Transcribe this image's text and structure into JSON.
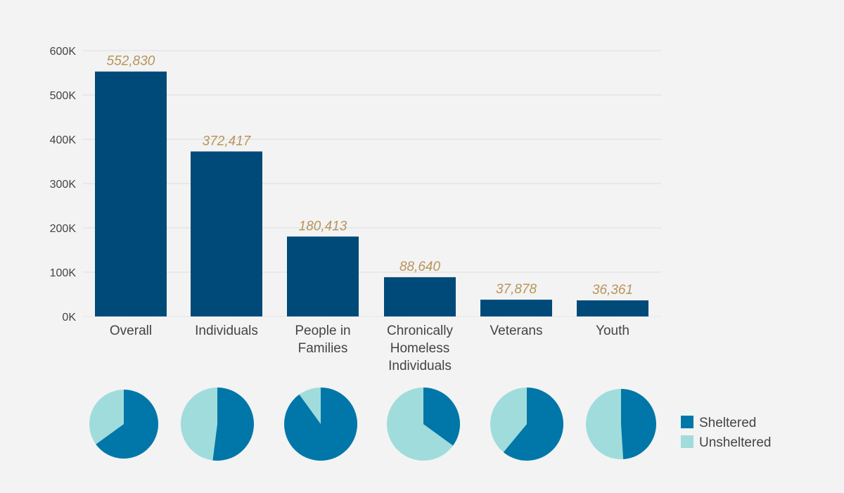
{
  "colors": {
    "bar": "#004a7a",
    "value_label": "#b8945a",
    "sheltered": "#0077a8",
    "unsheltered": "#a0dcdc",
    "axis_text": "#444444",
    "grid": "#dcdcdc"
  },
  "chart_data": [
    {
      "type": "bar",
      "title": "",
      "xlabel": "",
      "ylabel": "",
      "ylim": [
        0,
        600000
      ],
      "yticks": [
        {
          "value": 0,
          "label": "0K"
        },
        {
          "value": 100000,
          "label": "100K"
        },
        {
          "value": 200000,
          "label": "200K"
        },
        {
          "value": 300000,
          "label": "300K"
        },
        {
          "value": 400000,
          "label": "400K"
        },
        {
          "value": 500000,
          "label": "500K"
        },
        {
          "value": 600000,
          "label": "600K"
        }
      ],
      "grid": true,
      "categories": [
        [
          "Overall"
        ],
        [
          "Individuals"
        ],
        [
          "People in",
          "Families"
        ],
        [
          "Chronically",
          "Homeless",
          "Individuals"
        ],
        [
          "Veterans"
        ],
        [
          "Youth"
        ]
      ],
      "values": [
        552830,
        372417,
        180413,
        88640,
        37878,
        36361
      ],
      "value_labels": [
        "552,830",
        "372,417",
        "180,413",
        "88,640",
        "37,878",
        "36,361"
      ]
    },
    {
      "type": "pie",
      "legend": {
        "position": "right",
        "entries": [
          "Sheltered",
          "Unsheltered"
        ]
      },
      "pies": [
        {
          "category": "Overall",
          "sheltered_share": 0.65,
          "unsheltered_share": 0.35
        },
        {
          "category": "Individuals",
          "sheltered_share": 0.52,
          "unsheltered_share": 0.48
        },
        {
          "category": "People in Families",
          "sheltered_share": 0.9,
          "unsheltered_share": 0.1
        },
        {
          "category": "Chronically Homeless Individuals",
          "sheltered_share": 0.35,
          "unsheltered_share": 0.65
        },
        {
          "category": "Veterans",
          "sheltered_share": 0.61,
          "unsheltered_share": 0.39
        },
        {
          "category": "Youth",
          "sheltered_share": 0.49,
          "unsheltered_share": 0.51
        }
      ]
    }
  ]
}
